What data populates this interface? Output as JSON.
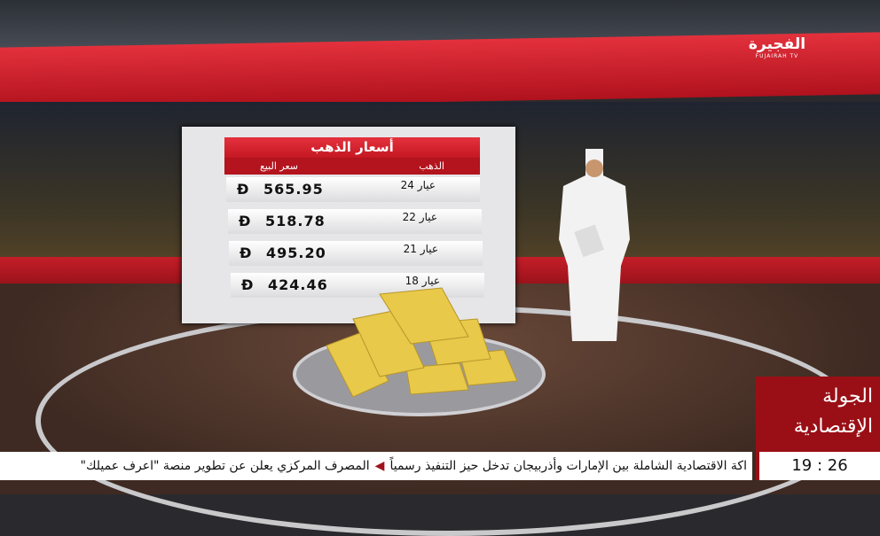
{
  "channel": {
    "logo_arabic": "الفجيرة",
    "logo_english": "FUJAIRAH TV"
  },
  "board": {
    "title": "أسعار الذهب",
    "col_gold": "الذهب",
    "col_sell": "سعر البيع",
    "currency_symbol": "Đ",
    "rows": [
      {
        "karat": "عيار 24",
        "price": "565.95"
      },
      {
        "karat": "عيار 22",
        "price": "518.78"
      },
      {
        "karat": "عيار 21",
        "price": "495.20"
      },
      {
        "karat": "عيار 18",
        "price": "424.46"
      }
    ]
  },
  "program": {
    "title_line1": "الجولة",
    "title_line2": "الإقتصادية"
  },
  "ticker": {
    "item1": "اكة الاقتصادية الشاملة بين الإمارات وأذربيجان تدخل حيز التنفيذ رسمياً",
    "item2": "المصرف المركزي يعلن عن تطوير منصة \"اعرف عميلك\""
  },
  "clock": "19 : 26",
  "colors": {
    "brand_red": "#c41822",
    "program_red": "#9a0f16",
    "gold": "#e8c94a"
  }
}
